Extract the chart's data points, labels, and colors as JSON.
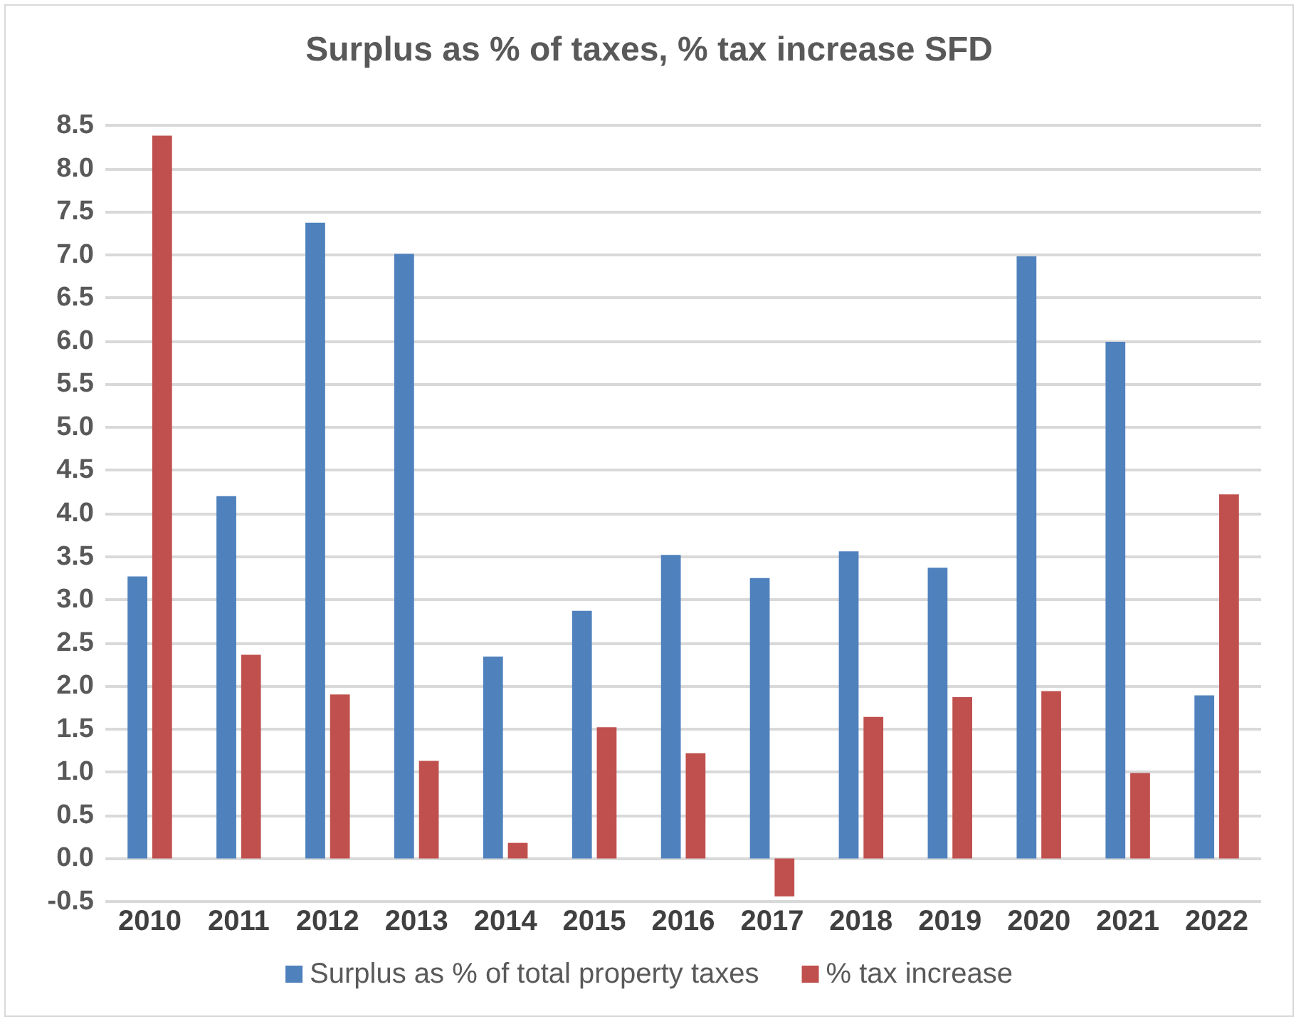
{
  "chart_data": {
    "type": "bar",
    "title": "Surplus as % of taxes, % tax increase SFD",
    "categories": [
      "2010",
      "2011",
      "2012",
      "2013",
      "2014",
      "2015",
      "2016",
      "2017",
      "2018",
      "2019",
      "2020",
      "2021",
      "2022"
    ],
    "series": [
      {
        "name": "Surplus as % of total property taxes",
        "color": "#4f81bd",
        "values": [
          3.27,
          4.2,
          7.37,
          7.01,
          2.34,
          2.87,
          3.52,
          3.25,
          3.56,
          3.37,
          6.98,
          5.99,
          1.89
        ]
      },
      {
        "name": "% tax increase",
        "color": "#c0504d",
        "values": [
          8.38,
          2.36,
          1.9,
          1.13,
          0.18,
          1.52,
          1.22,
          -0.44,
          1.64,
          1.87,
          1.94,
          0.99,
          4.22
        ]
      }
    ],
    "ylim": [
      -0.5,
      8.5
    ],
    "yticks": [
      {
        "value": -0.5,
        "label": "-0.5"
      },
      {
        "value": 0,
        "label": "0.0"
      },
      {
        "value": 0.5,
        "label": "0.5"
      },
      {
        "value": 1,
        "label": "1.0"
      },
      {
        "value": 1.5,
        "label": "1.5"
      },
      {
        "value": 2,
        "label": "2.0"
      },
      {
        "value": 2.5,
        "label": "2.5"
      },
      {
        "value": 3,
        "label": "3.0"
      },
      {
        "value": 3.5,
        "label": "3.5"
      },
      {
        "value": 4,
        "label": "4.0"
      },
      {
        "value": 4.5,
        "label": "4.5"
      },
      {
        "value": 5,
        "label": "5.0"
      },
      {
        "value": 5.5,
        "label": "5.5"
      },
      {
        "value": 6,
        "label": "6.0"
      },
      {
        "value": 6.5,
        "label": "6.5"
      },
      {
        "value": 7,
        "label": "7.0"
      },
      {
        "value": 7.5,
        "label": "7.5"
      },
      {
        "value": 8,
        "label": "8.0"
      },
      {
        "value": 8.5,
        "label": "8.5"
      }
    ],
    "grid": "y",
    "legend": "bottom"
  }
}
